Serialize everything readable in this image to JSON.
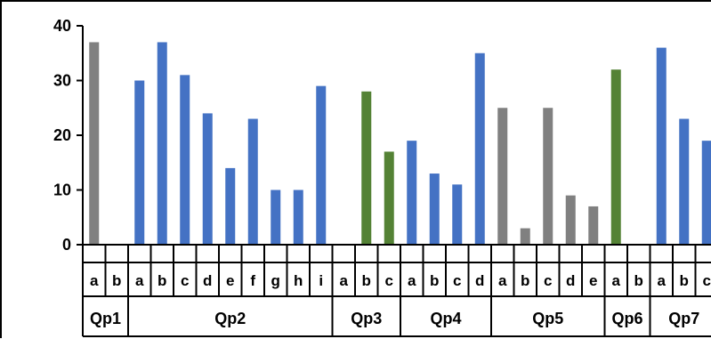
{
  "chart_data": {
    "type": "bar",
    "ylim": [
      0,
      40
    ],
    "yticks": [
      0,
      10,
      20,
      30,
      40
    ],
    "grid": false,
    "colors": {
      "gray": "#808080",
      "blue": "#4472C4",
      "green": "#548235"
    },
    "groups": [
      {
        "name": "Qp1",
        "bars": [
          {
            "label": "a",
            "value": 37,
            "color": "gray"
          },
          {
            "label": "b",
            "value": 0,
            "color": "gray"
          }
        ]
      },
      {
        "name": "Qp2",
        "bars": [
          {
            "label": "a",
            "value": 30,
            "color": "blue"
          },
          {
            "label": "b",
            "value": 37,
            "color": "blue"
          },
          {
            "label": "c",
            "value": 31,
            "color": "blue"
          },
          {
            "label": "d",
            "value": 24,
            "color": "blue"
          },
          {
            "label": "e",
            "value": 14,
            "color": "blue"
          },
          {
            "label": "f",
            "value": 23,
            "color": "blue"
          },
          {
            "label": "g",
            "value": 10,
            "color": "blue"
          },
          {
            "label": "h",
            "value": 10,
            "color": "blue"
          },
          {
            "label": "i",
            "value": 29,
            "color": "blue"
          }
        ]
      },
      {
        "name": "Qp3",
        "bars": [
          {
            "label": "a",
            "value": 0,
            "color": "green"
          },
          {
            "label": "b",
            "value": 28,
            "color": "green"
          },
          {
            "label": "c",
            "value": 17,
            "color": "green"
          }
        ]
      },
      {
        "name": "Qp4",
        "bars": [
          {
            "label": "a",
            "value": 19,
            "color": "blue"
          },
          {
            "label": "b",
            "value": 13,
            "color": "blue"
          },
          {
            "label": "c",
            "value": 11,
            "color": "blue"
          },
          {
            "label": "d",
            "value": 35,
            "color": "blue"
          }
        ]
      },
      {
        "name": "Qp5",
        "bars": [
          {
            "label": "a",
            "value": 25,
            "color": "gray"
          },
          {
            "label": "b",
            "value": 3,
            "color": "gray"
          },
          {
            "label": "c",
            "value": 25,
            "color": "gray"
          },
          {
            "label": "d",
            "value": 9,
            "color": "gray"
          },
          {
            "label": "e",
            "value": 7,
            "color": "gray"
          }
        ]
      },
      {
        "name": "Qp6",
        "bars": [
          {
            "label": "a",
            "value": 32,
            "color": "green"
          },
          {
            "label": "b",
            "value": 0,
            "color": "green"
          }
        ]
      },
      {
        "name": "Qp7",
        "bars": [
          {
            "label": "a",
            "value": 36,
            "color": "blue"
          },
          {
            "label": "b",
            "value": 23,
            "color": "blue"
          },
          {
            "label": "c",
            "value": 19,
            "color": "blue"
          }
        ]
      }
    ]
  }
}
